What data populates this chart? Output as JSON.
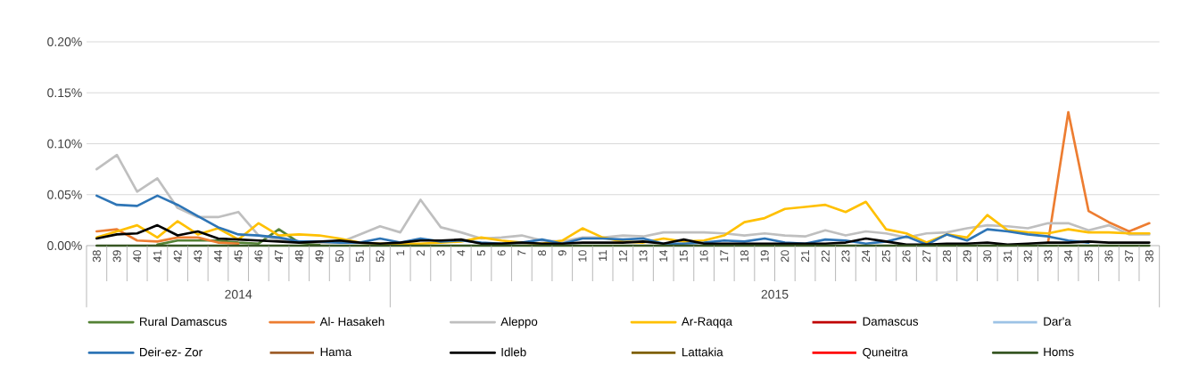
{
  "chart_data": {
    "type": "line",
    "categories": [
      "38",
      "39",
      "40",
      "41",
      "42",
      "43",
      "44",
      "45",
      "46",
      "47",
      "48",
      "49",
      "50",
      "51",
      "52",
      "1",
      "2",
      "3",
      "4",
      "5",
      "6",
      "7",
      "8",
      "9",
      "10",
      "11",
      "12",
      "13",
      "14",
      "15",
      "16",
      "17",
      "18",
      "19",
      "20",
      "21",
      "22",
      "23",
      "24",
      "25",
      "26",
      "27",
      "28",
      "29",
      "30",
      "31",
      "32",
      "33",
      "34",
      "35",
      "36",
      "37",
      "38"
    ],
    "annotations": [
      {
        "text": "2014"
      },
      {
        "text": "2015"
      }
    ],
    "ylim": [
      0,
      0.2
    ],
    "yticks": [
      {
        "value": 0,
        "label": "0.00%"
      },
      {
        "value": 0.05,
        "label": "0.05%"
      },
      {
        "value": 0.1,
        "label": "0.10%"
      },
      {
        "value": 0.15,
        "label": "0.15%"
      },
      {
        "value": 0.2,
        "label": "0.20%"
      }
    ],
    "grid": "y",
    "legend": "bottom",
    "series": [
      {
        "name": "Rural Damascus",
        "color": "#548235",
        "values": [
          null,
          null,
          null,
          0.001,
          0.005,
          0.005,
          0.005,
          0.003,
          0.002,
          0.016,
          0.003,
          0.001,
          null,
          null,
          null,
          null,
          null,
          null,
          null,
          null,
          null,
          null,
          null,
          null,
          null,
          null,
          null,
          null,
          null,
          null,
          null,
          null,
          null,
          null,
          null,
          null,
          null,
          null,
          null,
          null,
          null,
          null,
          null,
          null,
          null,
          null,
          null,
          null,
          null,
          null,
          null,
          null,
          null
        ]
      },
      {
        "name": "Al- Hasakeh",
        "color": "#ed7d31",
        "values": [
          0.014,
          0.016,
          0.005,
          0.004,
          0.008,
          0.008,
          0.003,
          0.002,
          null,
          null,
          null,
          null,
          null,
          null,
          null,
          null,
          null,
          null,
          null,
          null,
          null,
          null,
          null,
          null,
          null,
          null,
          null,
          null,
          null,
          null,
          null,
          null,
          null,
          null,
          null,
          null,
          null,
          null,
          null,
          null,
          null,
          null,
          null,
          null,
          null,
          null,
          null,
          0.003,
          0.131,
          0.034,
          0.023,
          0.014,
          0.022
        ]
      },
      {
        "name": "Aleppo",
        "color": "#bfbfbf",
        "values": [
          0.075,
          0.089,
          0.053,
          0.066,
          0.037,
          0.028,
          0.028,
          0.033,
          0.01,
          0.006,
          0.004,
          0.003,
          0.003,
          0.011,
          0.019,
          0.013,
          0.045,
          0.018,
          0.013,
          0.007,
          0.008,
          0.01,
          0.005,
          0.004,
          0.008,
          0.008,
          0.01,
          0.009,
          0.013,
          0.013,
          0.013,
          0.012,
          0.01,
          0.012,
          0.01,
          0.009,
          0.015,
          0.01,
          0.014,
          0.012,
          0.008,
          0.012,
          0.013,
          0.017,
          0.02,
          0.019,
          0.017,
          0.022,
          0.022,
          0.015,
          0.02,
          0.011,
          0.011
        ]
      },
      {
        "name": "Ar-Raqqa",
        "color": "#ffc000",
        "values": [
          0.008,
          0.014,
          0.02,
          0.008,
          0.024,
          0.011,
          0.017,
          0.006,
          0.022,
          0.01,
          0.011,
          0.01,
          0.007,
          0.003,
          0.002,
          0.002,
          0.002,
          0.003,
          0.004,
          0.008,
          0.005,
          0.003,
          0.002,
          0.005,
          0.017,
          0.008,
          0.004,
          0.003,
          0.007,
          0.004,
          0.005,
          0.01,
          0.023,
          0.027,
          0.036,
          0.038,
          0.04,
          0.033,
          0.043,
          0.016,
          0.012,
          0.003,
          0.011,
          0.008,
          0.03,
          0.015,
          0.013,
          0.012,
          0.016,
          0.013,
          0.013,
          0.012,
          0.012
        ]
      },
      {
        "name": "Damascus",
        "color": "#c00000",
        "values": [
          null,
          null,
          null,
          null,
          null,
          null,
          null,
          null,
          null,
          null,
          null,
          null,
          null,
          null,
          null,
          null,
          null,
          null,
          null,
          null,
          null,
          null,
          null,
          null,
          null,
          null,
          null,
          null,
          null,
          null,
          null,
          null,
          null,
          null,
          null,
          null,
          null,
          null,
          null,
          null,
          null,
          null,
          null,
          null,
          null,
          null,
          null,
          null,
          null,
          null,
          null,
          null,
          null
        ]
      },
      {
        "name": "Dar'a",
        "color": "#9dc3e6",
        "values": [
          null,
          null,
          null,
          null,
          null,
          null,
          null,
          null,
          null,
          null,
          null,
          null,
          null,
          null,
          null,
          null,
          null,
          null,
          null,
          null,
          null,
          null,
          null,
          null,
          null,
          null,
          null,
          null,
          null,
          null,
          null,
          null,
          null,
          null,
          null,
          null,
          null,
          null,
          null,
          null,
          null,
          null,
          null,
          null,
          null,
          null,
          null,
          null,
          null,
          null,
          null,
          null,
          null
        ]
      },
      {
        "name": "Deir-ez- Zor",
        "color": "#2e75b6",
        "values": [
          0.049,
          0.04,
          0.039,
          0.049,
          0.04,
          0.029,
          0.018,
          0.011,
          0.01,
          0.008,
          0.004,
          0.004,
          0.003,
          0.003,
          0.007,
          0.003,
          0.007,
          0.004,
          0.005,
          0.003,
          0.002,
          0.003,
          0.006,
          0.002,
          0.007,
          0.007,
          0.006,
          0.007,
          0.002,
          0.002,
          0.003,
          0.005,
          0.004,
          0.007,
          0.003,
          0.002,
          0.006,
          0.005,
          0.002,
          0.004,
          0.009,
          0.001,
          0.011,
          0.005,
          0.016,
          0.014,
          0.011,
          0.009,
          0.005,
          0.003,
          null,
          null,
          null
        ]
      },
      {
        "name": "Hama",
        "color": "#9e5e2a",
        "values": [
          null,
          null,
          null,
          null,
          null,
          null,
          null,
          null,
          null,
          null,
          null,
          null,
          null,
          null,
          null,
          null,
          null,
          null,
          null,
          null,
          null,
          null,
          null,
          null,
          null,
          null,
          null,
          null,
          null,
          null,
          null,
          null,
          null,
          null,
          null,
          null,
          null,
          null,
          null,
          null,
          null,
          null,
          null,
          null,
          null,
          null,
          null,
          null,
          null,
          null,
          null,
          null,
          null
        ]
      },
      {
        "name": "Idleb",
        "color": "#000000",
        "values": [
          0.007,
          0.011,
          0.012,
          0.02,
          0.01,
          0.014,
          0.007,
          0.006,
          0.005,
          0.004,
          0.003,
          0.004,
          0.005,
          0.003,
          0.002,
          0.003,
          0.005,
          0.005,
          0.006,
          0.002,
          0.002,
          0.003,
          0.002,
          0.002,
          0.003,
          0.003,
          0.003,
          0.004,
          0.002,
          0.006,
          0.002,
          0.002,
          0.002,
          0.002,
          0.002,
          0.002,
          0.002,
          0.003,
          0.007,
          0.004,
          0.001,
          0.001,
          0.002,
          0.002,
          0.003,
          0.001,
          0.002,
          0.003,
          0.003,
          0.004,
          0.003,
          0.003,
          0.003
        ]
      },
      {
        "name": "Lattakia",
        "color": "#7f6000",
        "values": [
          null,
          null,
          null,
          null,
          null,
          null,
          null,
          null,
          null,
          null,
          null,
          null,
          null,
          null,
          null,
          null,
          null,
          null,
          null,
          null,
          null,
          null,
          null,
          null,
          null,
          null,
          null,
          null,
          null,
          null,
          null,
          null,
          null,
          null,
          null,
          null,
          null,
          null,
          null,
          null,
          null,
          null,
          null,
          null,
          null,
          null,
          null,
          null,
          null,
          null,
          null,
          null,
          null
        ]
      },
      {
        "name": "Quneitra",
        "color": "#ff0000",
        "values": [
          null,
          null,
          null,
          null,
          null,
          null,
          null,
          null,
          null,
          null,
          null,
          null,
          null,
          null,
          null,
          null,
          null,
          null,
          null,
          null,
          null,
          null,
          null,
          null,
          null,
          null,
          null,
          null,
          null,
          null,
          null,
          null,
          null,
          null,
          null,
          null,
          null,
          null,
          null,
          null,
          null,
          null,
          null,
          null,
          null,
          null,
          null,
          null,
          null,
          null,
          null,
          null,
          null
        ]
      },
      {
        "name": "Homs",
        "color": "#375623",
        "values": [
          0,
          0,
          0,
          0,
          0,
          0,
          0,
          0,
          0,
          0,
          0,
          0,
          0,
          0,
          0,
          0,
          0,
          0,
          0,
          0,
          0,
          0,
          0,
          0,
          0,
          0,
          0,
          0,
          0,
          0,
          0,
          0,
          0,
          0,
          0,
          0,
          0,
          0,
          0,
          0,
          0,
          0,
          0,
          0,
          0,
          0,
          0,
          0,
          0,
          0,
          0,
          0,
          0
        ]
      }
    ]
  }
}
